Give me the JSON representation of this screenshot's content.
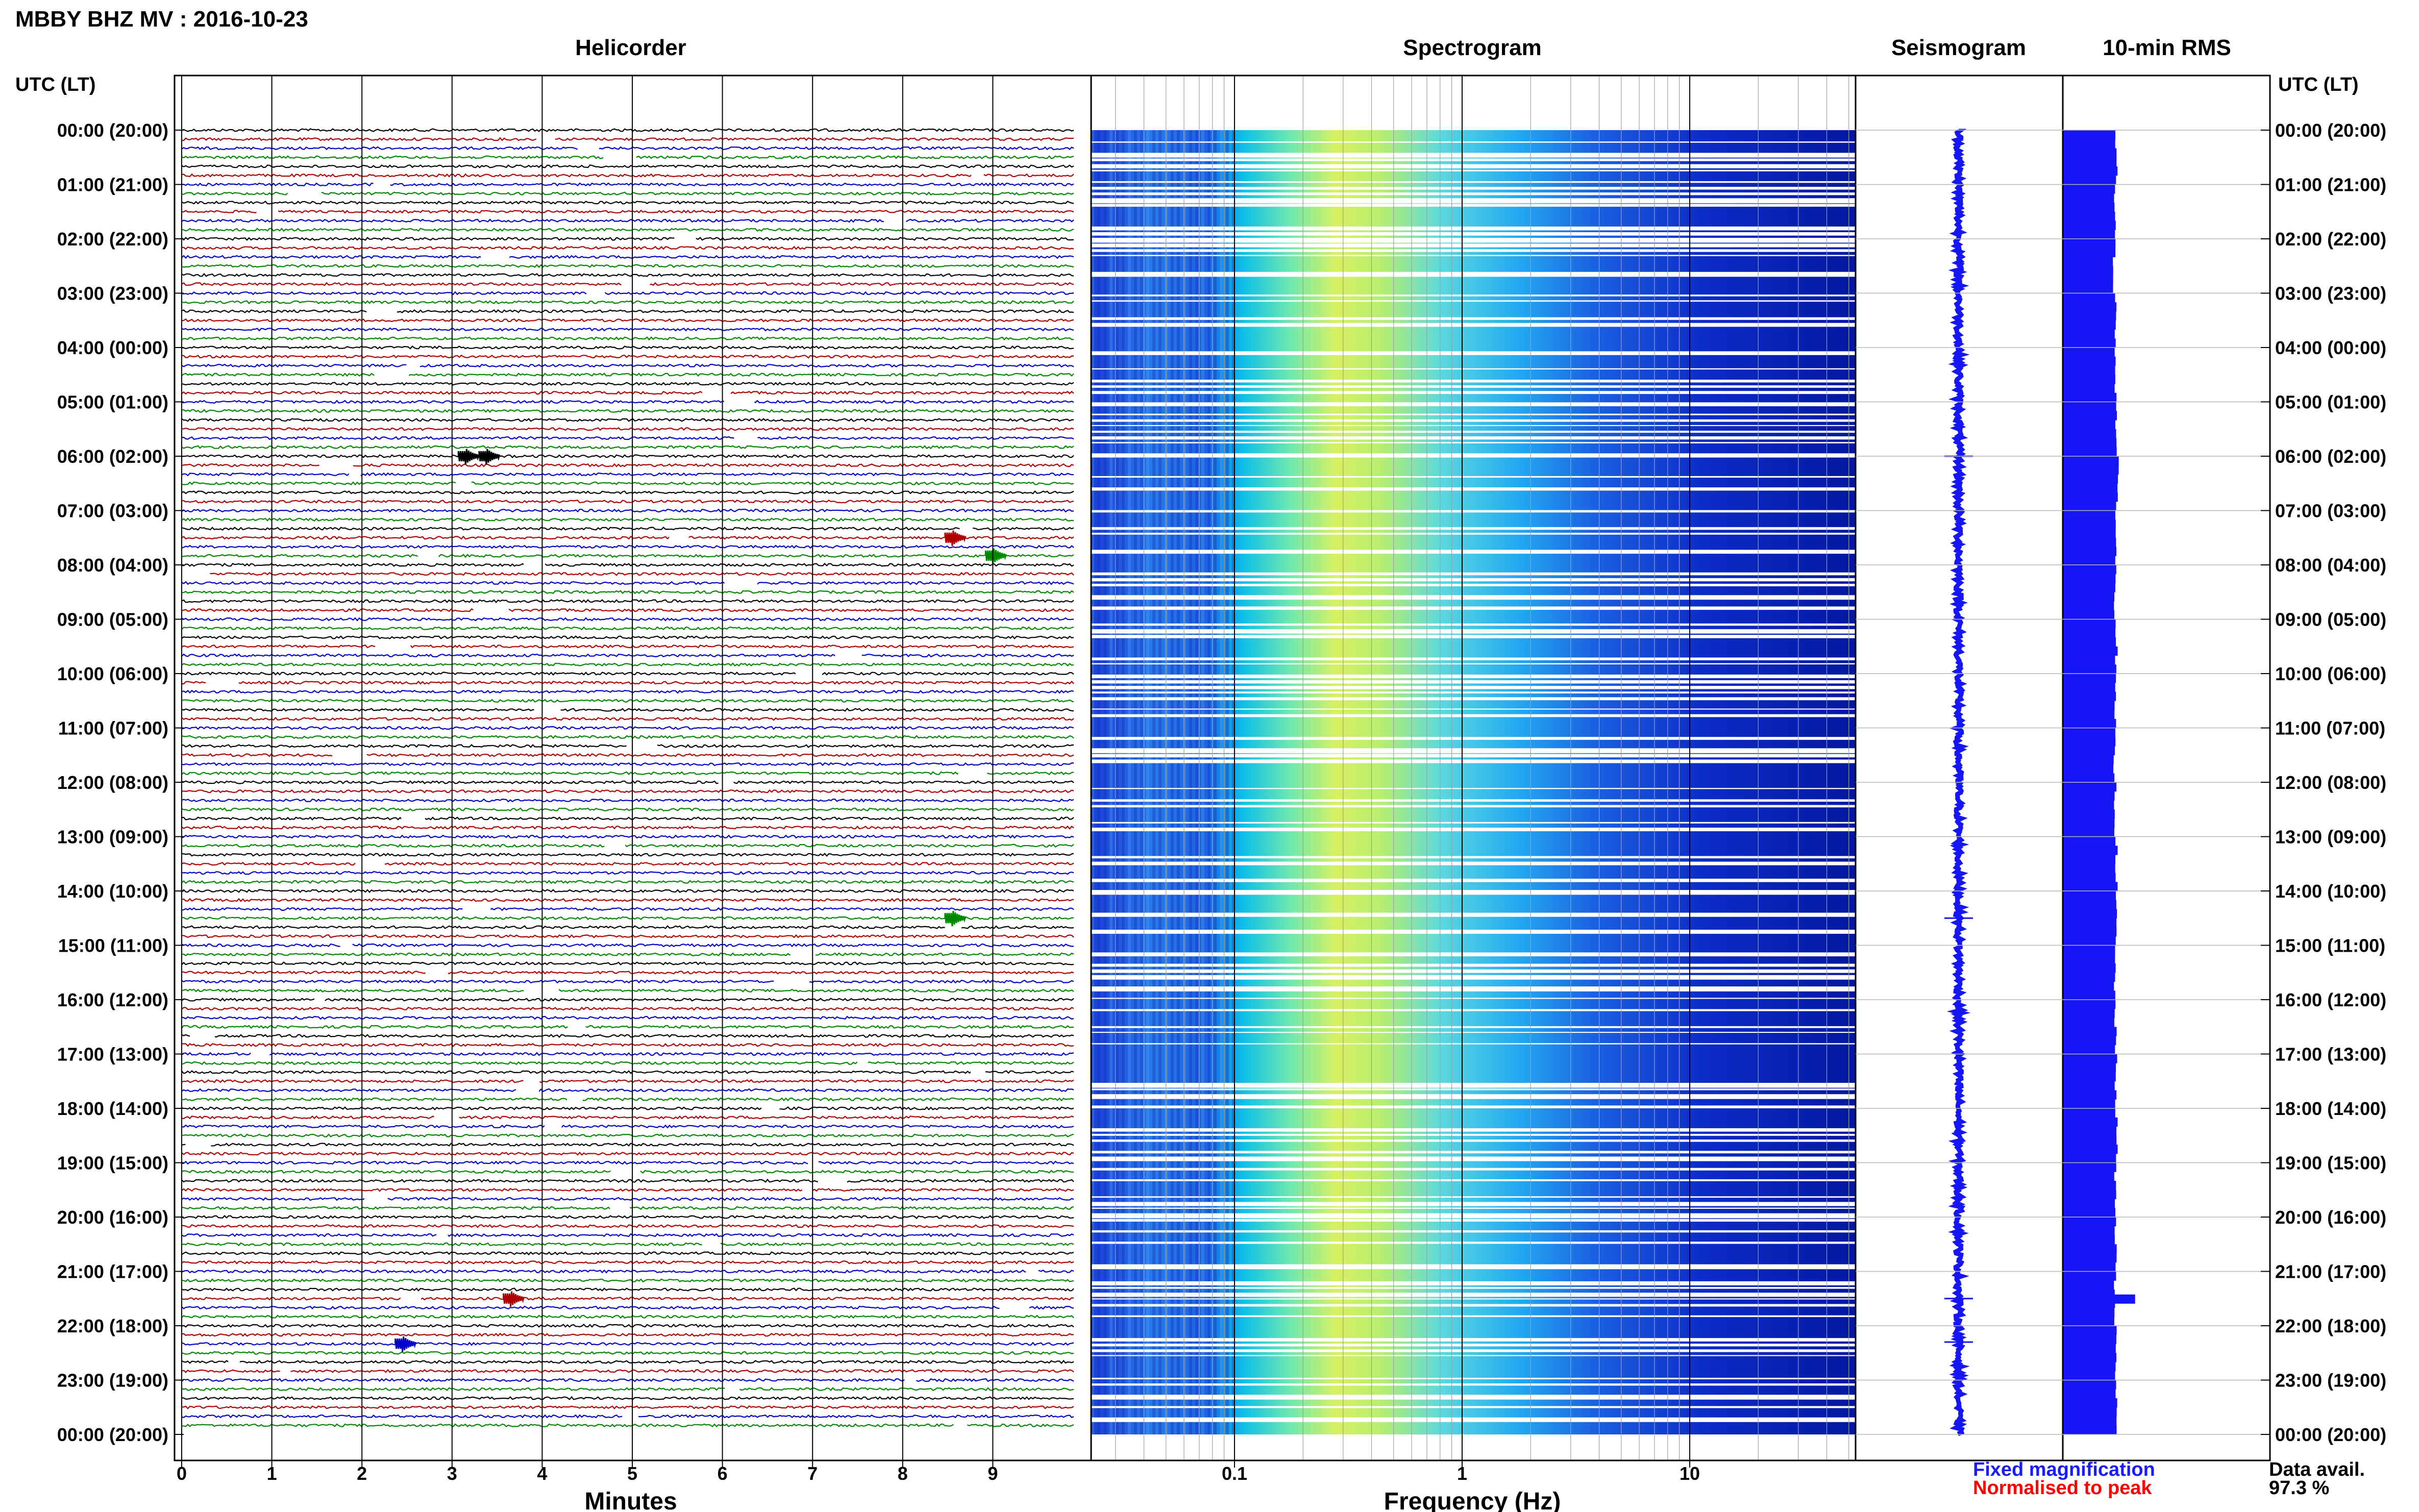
{
  "header": {
    "title": "MBBY BHZ MV : 2016-10-23",
    "left_axis_label": "UTC (LT)",
    "right_axis_label": "UTC (LT)"
  },
  "panels": {
    "helicorder": "Helicorder",
    "spectrogram": "Spectrogram",
    "seismogram": "Seismogram",
    "rms": "10-min RMS"
  },
  "x_labels": {
    "helicorder": "Minutes",
    "spectrogram": "Frequency (Hz)"
  },
  "legend": {
    "fixed": "Fixed magnification",
    "normalised": "Normalised to peak",
    "data_avail_label": "Data avail.",
    "data_avail_value": "97.3 %"
  },
  "colors": {
    "fixed": "#1a1aff",
    "normalised": "#ff0000",
    "rms_bar": "#1515f5",
    "trace_cycle": [
      "#000000",
      "#b00000",
      "#0000cc",
      "#008800"
    ]
  },
  "chart_data": [
    {
      "type": "line",
      "panel": "helicorder",
      "title": "Helicorder",
      "xlabel": "Minutes",
      "xlim": [
        0,
        10
      ],
      "x_ticks": [
        "0",
        "1",
        "2",
        "3",
        "4",
        "5",
        "6",
        "7",
        "8",
        "9"
      ],
      "y_ticks": [
        "00:00 (20:00)",
        "01:00 (21:00)",
        "02:00 (22:00)",
        "03:00 (23:00)",
        "04:00 (00:00)",
        "05:00 (01:00)",
        "06:00 (02:00)",
        "07:00 (03:00)",
        "08:00 (04:00)",
        "09:00 (05:00)",
        "10:00 (06:00)",
        "11:00 (07:00)",
        "12:00 (08:00)",
        "13:00 (09:00)",
        "14:00 (10:00)",
        "15:00 (11:00)",
        "16:00 (12:00)",
        "17:00 (13:00)",
        "18:00 (14:00)",
        "19:00 (15:00)",
        "20:00 (16:00)",
        "21:00 (17:00)",
        "22:00 (18:00)",
        "23:00 (19:00)",
        "00:00 (20:00)"
      ],
      "rows_per_hour": 6,
      "events": [
        {
          "hour": 6.0,
          "minute": 3.15
        },
        {
          "hour": 6.0,
          "minute": 3.38
        },
        {
          "hour": 7.5,
          "minute": 8.55
        },
        {
          "hour": 7.83,
          "minute": 9.0
        },
        {
          "hour": 14.5,
          "minute": 8.55
        },
        {
          "hour": 21.5,
          "minute": 3.65
        },
        {
          "hour": 22.33,
          "minute": 2.45
        }
      ]
    },
    {
      "type": "heatmap",
      "panel": "spectrogram",
      "title": "Spectrogram",
      "xlabel": "Frequency (Hz)",
      "x_scale": "log",
      "xlim": [
        0.025,
        50
      ],
      "x_ticks": [
        "0.1",
        "1",
        "10"
      ],
      "peak_band_hz": [
        0.15,
        0.6
      ]
    },
    {
      "type": "line",
      "panel": "seismogram",
      "title": "Seismogram"
    },
    {
      "type": "bar",
      "panel": "rms",
      "title": "10-min RMS",
      "orientation": "horizontal",
      "hours": [
        0,
        1,
        2,
        3,
        4,
        5,
        6,
        7,
        8,
        9,
        10,
        11,
        12,
        13,
        14,
        15,
        16,
        17,
        18,
        19,
        20,
        21,
        22,
        23
      ],
      "values": [
        1.0,
        0.97,
        0.96,
        0.98,
        0.99,
        1.0,
        1.02,
        0.99,
        0.98,
        1.0,
        0.97,
        0.96,
        0.98,
        1.0,
        0.99,
        0.97,
        0.98,
        0.99,
        1.0,
        0.98,
        0.99,
        0.97,
        0.99,
        1.0
      ],
      "spike": {
        "hour": 21.5,
        "value": 1.35
      }
    }
  ]
}
